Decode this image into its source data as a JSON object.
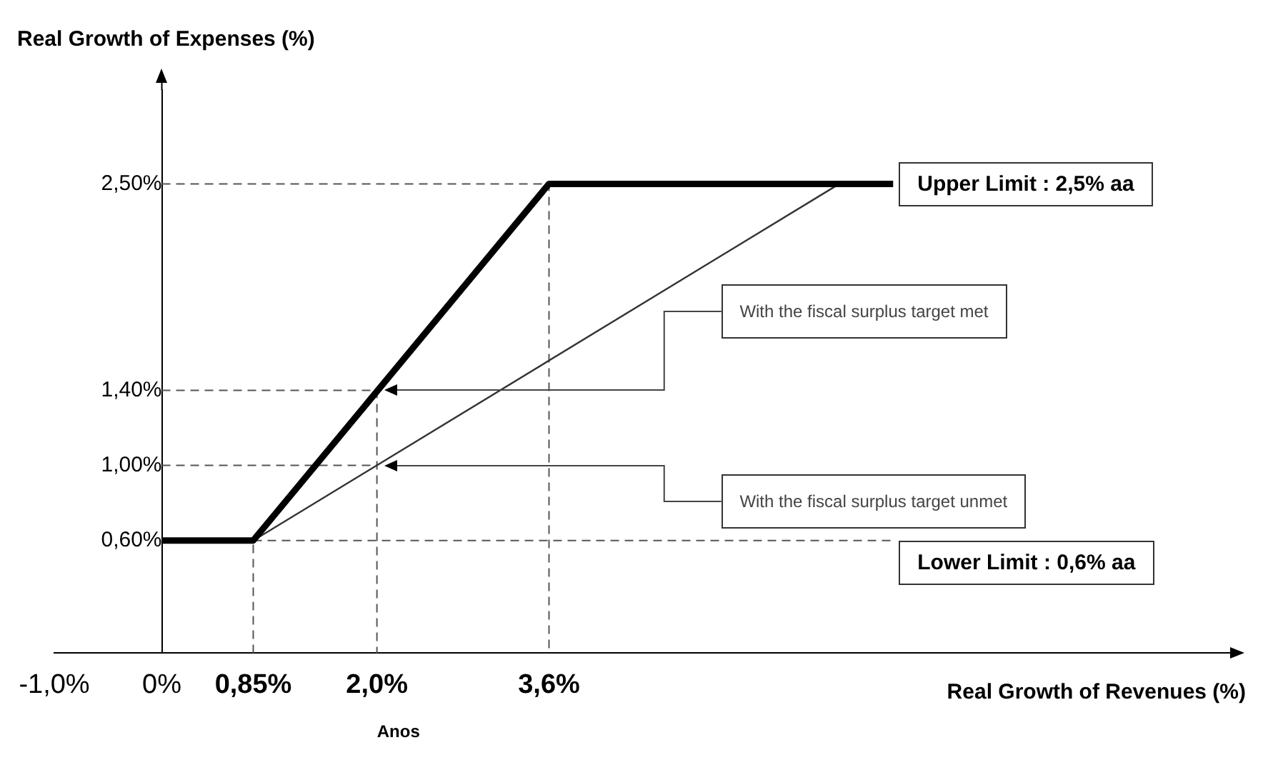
{
  "chart_data": {
    "type": "line",
    "ylabel": "Real Growth of Expenses (%)",
    "xlabel": "Real Growth of Revenues (%)",
    "xlim": [
      -1,
      10
    ],
    "xticks": [
      {
        "value": -1,
        "label": "-1,0%"
      },
      {
        "value": 0,
        "label": "0%"
      },
      {
        "value": 0.85,
        "label": "0,85%"
      },
      {
        "value": 2,
        "label": "2,0%"
      },
      {
        "value": 3.6,
        "label": "3,6%"
      }
    ],
    "ylim": [
      0,
      3
    ],
    "yticks": [
      {
        "value": 0.6,
        "label": "0,60%"
      },
      {
        "value": 1,
        "label": "1,00%"
      },
      {
        "value": 1.4,
        "label": "1,40%"
      },
      {
        "value": 2.5,
        "label": "2,50%"
      }
    ],
    "marker": "none",
    "series": [
      {
        "color": "#000000",
        "x": [
          0,
          0.85,
          3.6,
          6.8
        ],
        "values": [
          0.6,
          0.6,
          2.5,
          2.5
        ]
      },
      {
        "color": "#333333",
        "x": [
          0.85,
          6.3
        ],
        "values": [
          0.6,
          2.5
        ]
      },
      {
        "color": "#555555",
        "line_style": "dashed",
        "x": [
          0,
          3.6,
          3.6
        ],
        "values": [
          2.5,
          2.5,
          0
        ]
      },
      {
        "color": "#555555",
        "line_style": "dashed",
        "x": [
          0,
          2,
          2
        ],
        "values": [
          1.4,
          1.4,
          0
        ]
      },
      {
        "color": "#555555",
        "line_style": "dashed",
        "x": [
          0,
          2
        ],
        "values": [
          1,
          1
        ]
      },
      {
        "color": "#555555",
        "line_style": "dashed",
        "x": [
          0.85,
          0.85
        ],
        "values": [
          0,
          0.6
        ]
      },
      {
        "color": "#555555",
        "line_style": "dashed",
        "x": [
          0.85,
          6.8
        ],
        "values": [
          0.6,
          0.6
        ]
      }
    ],
    "annotations": [
      "Upper Limit : 2,5% aa",
      "With the fiscal surplus target met",
      "With the fiscal surplus target unmet",
      "Lower Limit : 0,6% aa",
      "Anos"
    ]
  }
}
